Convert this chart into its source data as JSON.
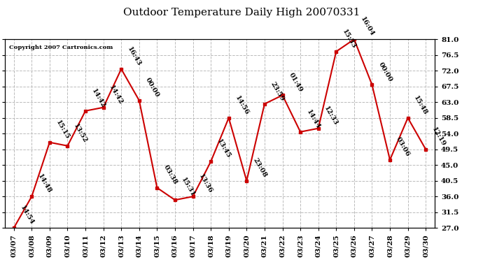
{
  "title": "Outdoor Temperature Daily High 20070331",
  "copyright": "Copyright 2007 Cartronics.com",
  "dates": [
    "03/07",
    "03/08",
    "03/09",
    "03/10",
    "03/11",
    "03/12",
    "03/13",
    "03/14",
    "03/15",
    "03/16",
    "03/17",
    "03/18",
    "03/19",
    "03/20",
    "03/21",
    "03/22",
    "03/23",
    "03/24",
    "03/25",
    "03/26",
    "03/27",
    "03/28",
    "03/29",
    "03/30"
  ],
  "values": [
    27.0,
    36.0,
    51.5,
    50.5,
    60.5,
    61.5,
    72.5,
    63.5,
    38.5,
    35.0,
    36.0,
    46.0,
    58.5,
    40.5,
    62.5,
    65.0,
    54.5,
    55.5,
    77.5,
    81.0,
    68.0,
    46.5,
    58.5,
    49.5
  ],
  "time_labels": [
    "14:54",
    "14:48",
    "15:15",
    "13:52",
    "14:42",
    "14:42",
    "16:43",
    "00:00",
    "03:38",
    "15:31",
    "13:36",
    "13:45",
    "14:56",
    "23:08",
    "23:59",
    "01:49",
    "14:44",
    "12:33",
    "15:33",
    "16:04",
    "00:00",
    "03:06",
    "15:48",
    "12:19"
  ],
  "line_color": "#cc0000",
  "marker_color": "#cc0000",
  "background_color": "#ffffff",
  "grid_color": "#bbbbbb",
  "ylim": [
    27.0,
    81.0
  ],
  "yticks": [
    27.0,
    31.5,
    36.0,
    40.5,
    45.0,
    49.5,
    54.0,
    58.5,
    63.0,
    67.5,
    72.0,
    76.5,
    81.0
  ],
  "title_fontsize": 11,
  "label_fontsize": 7,
  "tick_fontsize": 7.5
}
